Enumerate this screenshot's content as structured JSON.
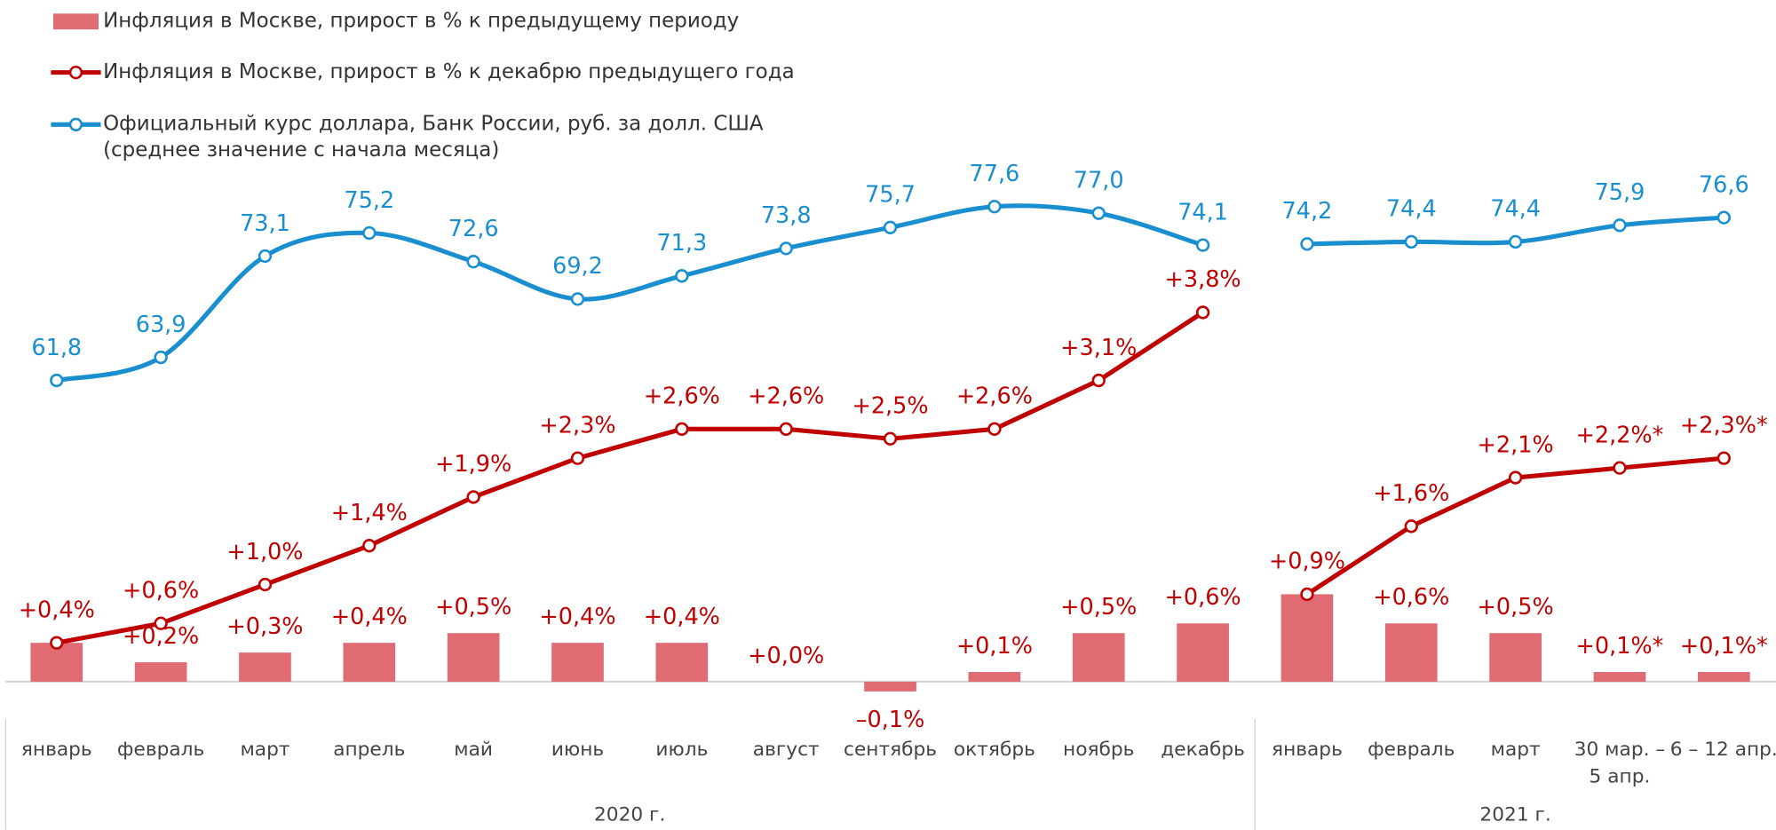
{
  "chart_data": {
    "type": "combo",
    "groups": [
      {
        "label": "2020 г.",
        "categories": [
          "январь",
          "февраль",
          "март",
          "апрель",
          "май",
          "июнь",
          "июль",
          "август",
          "сентябрь",
          "октябрь",
          "ноябрь",
          "декабрь"
        ]
      },
      {
        "label": "2021 г.",
        "categories": [
          "январь",
          "февраль",
          "март",
          "30 мар. –\n5 апр.",
          "6 – 12 апр."
        ]
      }
    ],
    "series": [
      {
        "name": "Инфляция в Москве, прирост в % к предыдущему периоду",
        "type": "bar",
        "color": "#e06b73",
        "values": [
          [
            0.4,
            0.2,
            0.3,
            0.4,
            0.5,
            0.4,
            0.4,
            0.0,
            -0.1,
            0.1,
            0.5,
            0.6
          ],
          [
            0.9,
            0.6,
            0.5,
            0.1,
            0.1
          ]
        ],
        "value_labels": [
          [
            null,
            "+0,2%",
            "+0,3%",
            "+0,4%",
            "+0,5%",
            "+0,4%",
            "+0,4%",
            "+0,0%",
            "–0,1%",
            "+0,1%",
            "+0,5%",
            "+0,6%"
          ],
          [
            null,
            "+0,6%",
            "+0,5%",
            "+0,1%*",
            "+0,1%*"
          ]
        ]
      },
      {
        "name": "Инфляция в Москве, прирост в % к декабрю предыдущего года",
        "type": "line",
        "color": "#c00000",
        "values": [
          [
            0.4,
            0.6,
            1.0,
            1.4,
            1.9,
            2.3,
            2.6,
            2.6,
            2.5,
            2.6,
            3.1,
            3.8
          ],
          [
            0.9,
            1.6,
            2.1,
            2.2,
            2.3
          ]
        ],
        "value_labels": [
          [
            "+0,4%",
            "+0,6%",
            "+1,0%",
            "+1,4%",
            "+1,9%",
            "+2,3%",
            "+2,6%",
            "+2,6%",
            "+2,5%",
            "+2,6%",
            "+3,1%",
            "+3,8%"
          ],
          [
            "+0,9%",
            "+1,6%",
            "+2,1%",
            "+2,2%*",
            "+2,3%*"
          ]
        ]
      },
      {
        "name": "Официальный курс доллара, Банк России, руб. за долл. США\n(среднее значение с начала месяца)",
        "type": "line",
        "axis": "y2",
        "smooth": true,
        "color": "#1a8fcf",
        "values": [
          [
            61.8,
            63.9,
            73.1,
            75.2,
            72.6,
            69.2,
            71.3,
            73.8,
            75.7,
            77.6,
            77.0,
            74.1
          ],
          [
            74.2,
            74.4,
            74.4,
            75.9,
            76.6
          ]
        ],
        "value_labels": [
          [
            "61,8",
            "63,9",
            "73,1",
            "75,2",
            "72,6",
            "69,2",
            "71,3",
            "73,8",
            "75,7",
            "77,6",
            "77,0",
            "74,1"
          ],
          [
            "74,2",
            "74,4",
            "74,4",
            "75,9",
            "76,6"
          ]
        ]
      }
    ],
    "ylim": [
      -0.5,
      5.5
    ],
    "y2lim": [
      30,
      83
    ]
  }
}
